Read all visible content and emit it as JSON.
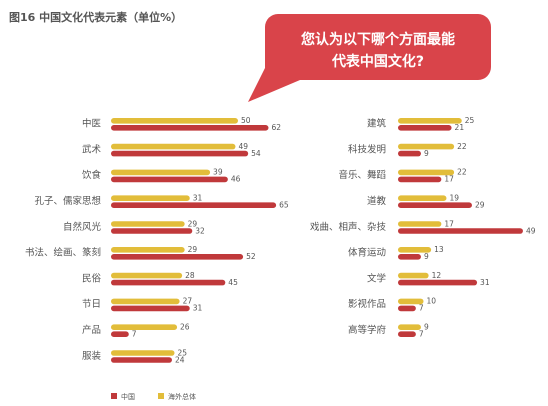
{
  "chart_data": {
    "type": "bar",
    "title": "图16 中国文化代表元素（单位%）",
    "question_lines": [
      "您认为以下哪个方面最能",
      "代表中国文化?"
    ],
    "legend": [
      {
        "name": "中国",
        "color": "#c0393b"
      },
      {
        "name": "海外总体",
        "color": "#e2bd3a"
      }
    ],
    "groups": [
      {
        "categories": [
          "中医",
          "武术",
          "饮食",
          "孔子、儒家思想",
          "自然风光",
          "书法、绘画、篆刻",
          "民俗",
          "节日",
          "产品",
          "服装"
        ],
        "series": [
          {
            "name": "海外总体",
            "values": [
              50,
              49,
              39,
              31,
              29,
              29,
              28,
              27,
              26,
              25
            ]
          },
          {
            "name": "中国",
            "values": [
              62,
              54,
              46,
              65,
              32,
              52,
              45,
              31,
              7,
              24
            ]
          }
        ]
      },
      {
        "categories": [
          "建筑",
          "科技发明",
          "音乐、舞蹈",
          "道教",
          "戏曲、相声、杂技",
          "体育运动",
          "文学",
          "影视作品",
          "高等学府"
        ],
        "series": [
          {
            "name": "海外总体",
            "values": [
              25,
              22,
              22,
              19,
              17,
              13,
              12,
              10,
              9
            ]
          },
          {
            "name": "中国",
            "values": [
              21,
              9,
              17,
              29,
              49,
              9,
              31,
              7,
              7
            ]
          }
        ]
      }
    ]
  }
}
